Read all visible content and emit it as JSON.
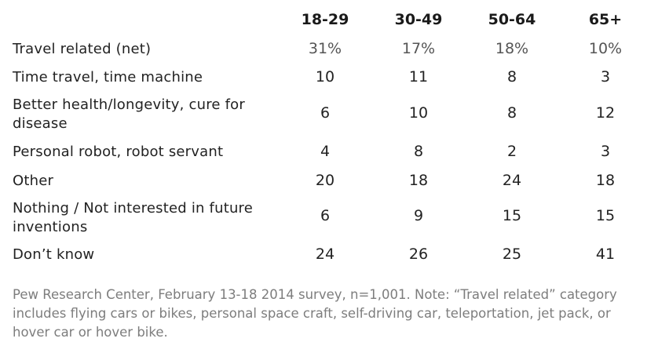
{
  "chart_data": {
    "type": "table",
    "columns": [
      "18-29",
      "30-49",
      "50-64",
      "65+"
    ],
    "rows": [
      {
        "label": "Travel related (net)",
        "values": [
          "31%",
          "17%",
          "18%",
          "10%"
        ]
      },
      {
        "label": "Time travel, time machine",
        "values": [
          "10",
          "11",
          "8",
          "3"
        ]
      },
      {
        "label_lines": [
          "Better health/longevity, cure for",
          "disease"
        ],
        "values": [
          "6",
          "10",
          "8",
          "12"
        ]
      },
      {
        "label": "Personal robot, robot servant",
        "values": [
          "4",
          "8",
          "2",
          "3"
        ]
      },
      {
        "label": "Other",
        "values": [
          "20",
          "18",
          "24",
          "18"
        ]
      },
      {
        "label_lines": [
          "Nothing / Not interested in future",
          "inventions"
        ],
        "values": [
          "6",
          "9",
          "15",
          "15"
        ]
      },
      {
        "label": "Don’t know",
        "values": [
          "24",
          "26",
          "25",
          "41"
        ]
      }
    ],
    "footnote": "Pew Research Center, February 13-18 2014 survey, n=1,001. Note: “Travel related” category includes flying cars or bikes, personal space craft, self-driving car, teleportation, jet pack, or hover car or hover bike."
  }
}
